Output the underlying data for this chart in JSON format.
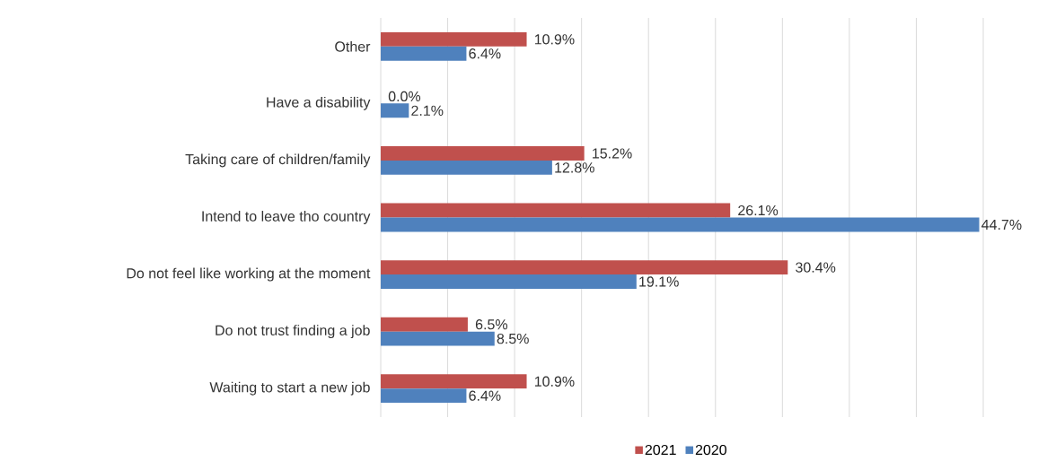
{
  "chart_data": {
    "type": "bar",
    "orientation": "horizontal",
    "categories": [
      "Other",
      "Have a disability",
      "Taking care of children/family",
      "Intend to leave tho country",
      "Do not feel like working at the moment",
      "Do not trust finding a job",
      "Waiting to start a new job"
    ],
    "series": [
      {
        "name": "2021",
        "color": "#c0504d",
        "values": [
          10.9,
          0.0,
          15.2,
          26.1,
          30.4,
          6.5,
          10.9
        ],
        "value_labels": [
          "10.9%",
          "0.0%",
          "15.2%",
          "26.1%",
          "30.4%",
          "6.5%",
          "10.9%"
        ]
      },
      {
        "name": "2020",
        "color": "#4f81bd",
        "values": [
          6.4,
          2.1,
          12.8,
          44.7,
          19.1,
          8.5,
          6.4
        ],
        "value_labels": [
          "6.4%",
          "2.1%",
          "12.8%",
          "44.7%",
          "19.1%",
          "8.5%",
          "6.4%"
        ]
      }
    ],
    "xlim": [
      0,
      45
    ],
    "xticks": [
      {
        "value": 0,
        "label": null
      },
      {
        "value": 5,
        "label": null
      },
      {
        "value": 10,
        "label": null
      },
      {
        "value": 15,
        "label": null
      },
      {
        "value": 20,
        "label": null
      },
      {
        "value": 25,
        "label": null
      },
      {
        "value": 30,
        "label": null
      },
      {
        "value": 35,
        "label": null
      },
      {
        "value": 40,
        "label": null
      },
      {
        "value": 45,
        "label": null
      }
    ],
    "grid": "x",
    "legend": "bottom"
  }
}
